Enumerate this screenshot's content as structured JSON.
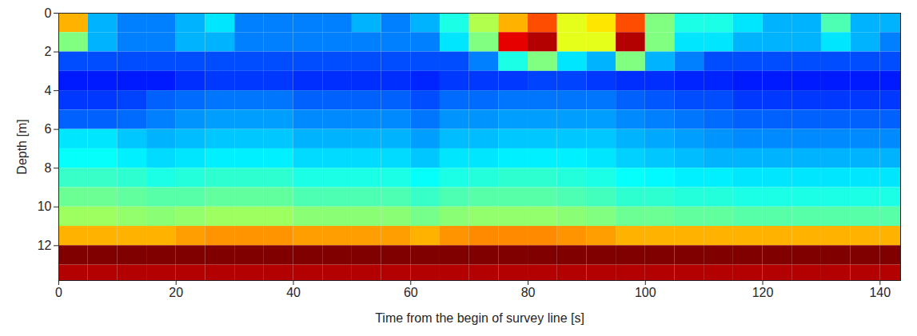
{
  "chart_data": {
    "type": "heatmap",
    "x_label": "Time from the begin of survey line [s]",
    "y_label": "Depth [m]",
    "xlim": [
      0,
      143.5
    ],
    "xticks": [
      0,
      20,
      40,
      60,
      80,
      100,
      120,
      140
    ],
    "ylim": [
      0,
      13.8
    ],
    "yticks": [
      0,
      2,
      4,
      6,
      8,
      10,
      12
    ],
    "color": "jet",
    "color_range": [
      0,
      10
    ],
    "x_edges": [
      0,
      5,
      10,
      15,
      20,
      25,
      30,
      35,
      40,
      45,
      50,
      55,
      60,
      65,
      70,
      75,
      80,
      85,
      90,
      95,
      100,
      105,
      110,
      115,
      120,
      125,
      130,
      135,
      140,
      145
    ],
    "y_edges": [
      0,
      1,
      2,
      3,
      4,
      5,
      6,
      7,
      8,
      9,
      10,
      11,
      12,
      13,
      14
    ],
    "values": [
      [
        7,
        3,
        2.5,
        2.5,
        3,
        3.5,
        2.5,
        2.5,
        2.5,
        2.5,
        3,
        2.5,
        3,
        4,
        5.5,
        7,
        8,
        6,
        6.5,
        8,
        5,
        4,
        4,
        3.5,
        3,
        3,
        4.5,
        3,
        3
      ],
      [
        5,
        3,
        2.5,
        2.5,
        3,
        3,
        2.5,
        2.5,
        2.5,
        2.5,
        2.5,
        2.5,
        2.5,
        3.5,
        5,
        9,
        9.5,
        6,
        6,
        9.5,
        5,
        3.5,
        3.5,
        3,
        3,
        3,
        3.5,
        3,
        2.5
      ],
      [
        2,
        2,
        2,
        2,
        2,
        2,
        2,
        2,
        2,
        2,
        2,
        2,
        2,
        2,
        2.5,
        4,
        5,
        3.5,
        3,
        5,
        3,
        2.5,
        2,
        2,
        2,
        2,
        2,
        2,
        2
      ],
      [
        1.5,
        1.5,
        1.5,
        1.5,
        1.7,
        1.8,
        1.8,
        1.8,
        1.7,
        1.7,
        1.7,
        1.7,
        1.6,
        1.8,
        1.8,
        1.8,
        1.9,
        1.9,
        1.8,
        1.7,
        1.7,
        1.6,
        1.6,
        1.5,
        1.5,
        1.5,
        1.5,
        1.5,
        1.5
      ],
      [
        1.8,
        1.8,
        1.9,
        2.2,
        2.3,
        2.4,
        2.4,
        2.4,
        2.2,
        2.2,
        2.2,
        2.2,
        2,
        2.3,
        2.3,
        2.4,
        2.4,
        2.4,
        2.4,
        2.2,
        2.1,
        2,
        2,
        1.8,
        1.8,
        1.8,
        1.8,
        1.8,
        1.8
      ],
      [
        2.2,
        2.2,
        2.3,
        2.5,
        2.7,
        2.8,
        2.8,
        2.8,
        2.6,
        2.6,
        2.6,
        2.6,
        2.4,
        2.7,
        2.7,
        2.8,
        2.8,
        2.8,
        2.8,
        2.6,
        2.5,
        2.4,
        2.3,
        2.2,
        2.2,
        2.2,
        2.2,
        2.2,
        2.2
      ],
      [
        3.5,
        3.5,
        3.2,
        3,
        3.1,
        3.2,
        3.2,
        3.2,
        3,
        3,
        3,
        3,
        2.8,
        3.1,
        3.1,
        3.2,
        3.2,
        3.2,
        3.2,
        3,
        2.9,
        2.8,
        2.7,
        2.6,
        2.6,
        2.6,
        2.6,
        2.6,
        2.6
      ],
      [
        3.8,
        3.8,
        3.6,
        3.4,
        3.5,
        3.6,
        3.6,
        3.6,
        3.4,
        3.4,
        3.4,
        3.4,
        3.2,
        3.5,
        3.5,
        3.6,
        3.6,
        3.6,
        3.5,
        3.3,
        3.2,
        3.1,
        3,
        3,
        3,
        3,
        3,
        3,
        3
      ],
      [
        4.3,
        4.3,
        4.2,
        4,
        4.1,
        4.2,
        4.2,
        4.2,
        4,
        4,
        4,
        4,
        3.8,
        4,
        4.1,
        4.2,
        4.2,
        4.1,
        4,
        3.8,
        3.7,
        3.6,
        3.6,
        3.5,
        3.5,
        3.5,
        3.5,
        3.5,
        3.5
      ],
      [
        4.8,
        4.8,
        4.7,
        4.6,
        4.6,
        4.7,
        4.7,
        4.7,
        4.5,
        4.5,
        4.5,
        4.5,
        4.3,
        4.5,
        4.6,
        4.6,
        4.6,
        4.5,
        4.4,
        4.2,
        4.2,
        4.1,
        4.1,
        4,
        4,
        4,
        4,
        4,
        4
      ],
      [
        5.3,
        5.3,
        5.2,
        5.1,
        5.2,
        5.3,
        5.3,
        5.3,
        5.1,
        5.1,
        5.1,
        5.1,
        4.9,
        5.1,
        5.2,
        5.2,
        5.2,
        5.1,
        5,
        4.8,
        4.8,
        4.7,
        4.7,
        4.6,
        4.6,
        4.6,
        4.6,
        4.6,
        4.6
      ],
      [
        7,
        7,
        7,
        7,
        7.2,
        7.3,
        7.3,
        7.3,
        7.2,
        7.2,
        7.2,
        7.2,
        7,
        7.3,
        7.4,
        7.4,
        7.4,
        7.3,
        7.2,
        7,
        7,
        7,
        7,
        7,
        7,
        7,
        7,
        7,
        7
      ],
      [
        10,
        10,
        10,
        10,
        10,
        10,
        10,
        10,
        10,
        10,
        10,
        10,
        10,
        10,
        10,
        10,
        10,
        10,
        10,
        10,
        10,
        10,
        10,
        10,
        10,
        10,
        10,
        10,
        10
      ],
      [
        9.5,
        9.5,
        9.5,
        9.5,
        9.5,
        9.5,
        9.5,
        9.5,
        9.5,
        9.5,
        9.5,
        9.5,
        9.5,
        9.5,
        9.5,
        9.5,
        9.5,
        9.5,
        9.5,
        9.5,
        9.5,
        9.5,
        9.5,
        9.5,
        9.5,
        9.5,
        9.5,
        9.5,
        9.5
      ]
    ]
  }
}
